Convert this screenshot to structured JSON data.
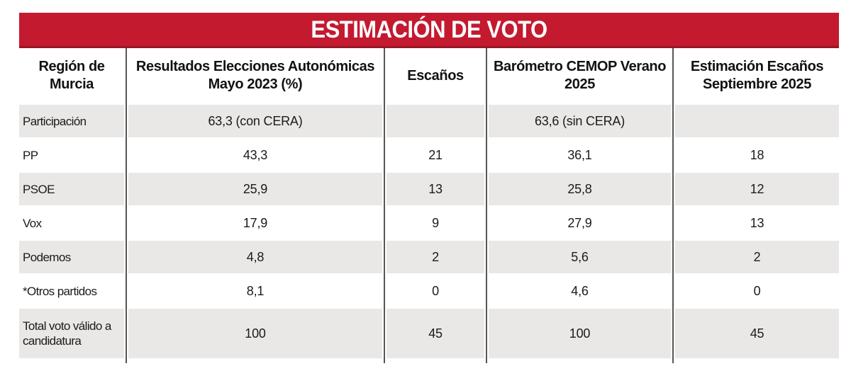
{
  "banner": {
    "title": "ESTIMACIÓN DE VOTO"
  },
  "colors": {
    "accent_red": "#c31a30",
    "accent_red_dark": "#9b1526",
    "row_shade": "#e9e8e6",
    "divider_gray": "#565656",
    "text": "#1b1b1b"
  },
  "chart_data": {
    "type": "table",
    "title": "ESTIMACIÓN DE VOTO",
    "columns": [
      "Región de Murcia",
      "Resultados Elecciones Autonómicas Mayo 2023 (%)",
      "Escaños",
      "Barómetro CEMOP Verano 2025",
      "Estimación Escaños Septiembre 2025"
    ],
    "rows": [
      [
        "Participación",
        "63,3 (con CERA)",
        "",
        "63,6 (sin CERA)",
        ""
      ],
      [
        "PP",
        "43,3",
        "21",
        "36,1",
        "18"
      ],
      [
        "PSOE",
        "25,9",
        "13",
        "25,8",
        "12"
      ],
      [
        "Vox",
        "17,9",
        "9",
        "27,9",
        "13"
      ],
      [
        "Podemos",
        "4,8",
        "2",
        "5,6",
        "2"
      ],
      [
        "*Otros partidos",
        "8,1",
        "0",
        "4,6",
        "0"
      ],
      [
        "Total voto válido a candidatura",
        "100",
        "45",
        "100",
        "45"
      ]
    ],
    "layout": {
      "zebra_shaded_row_indices": [
        0,
        2,
        4,
        6
      ],
      "value_alignment": "center",
      "label_alignment": "left"
    }
  }
}
